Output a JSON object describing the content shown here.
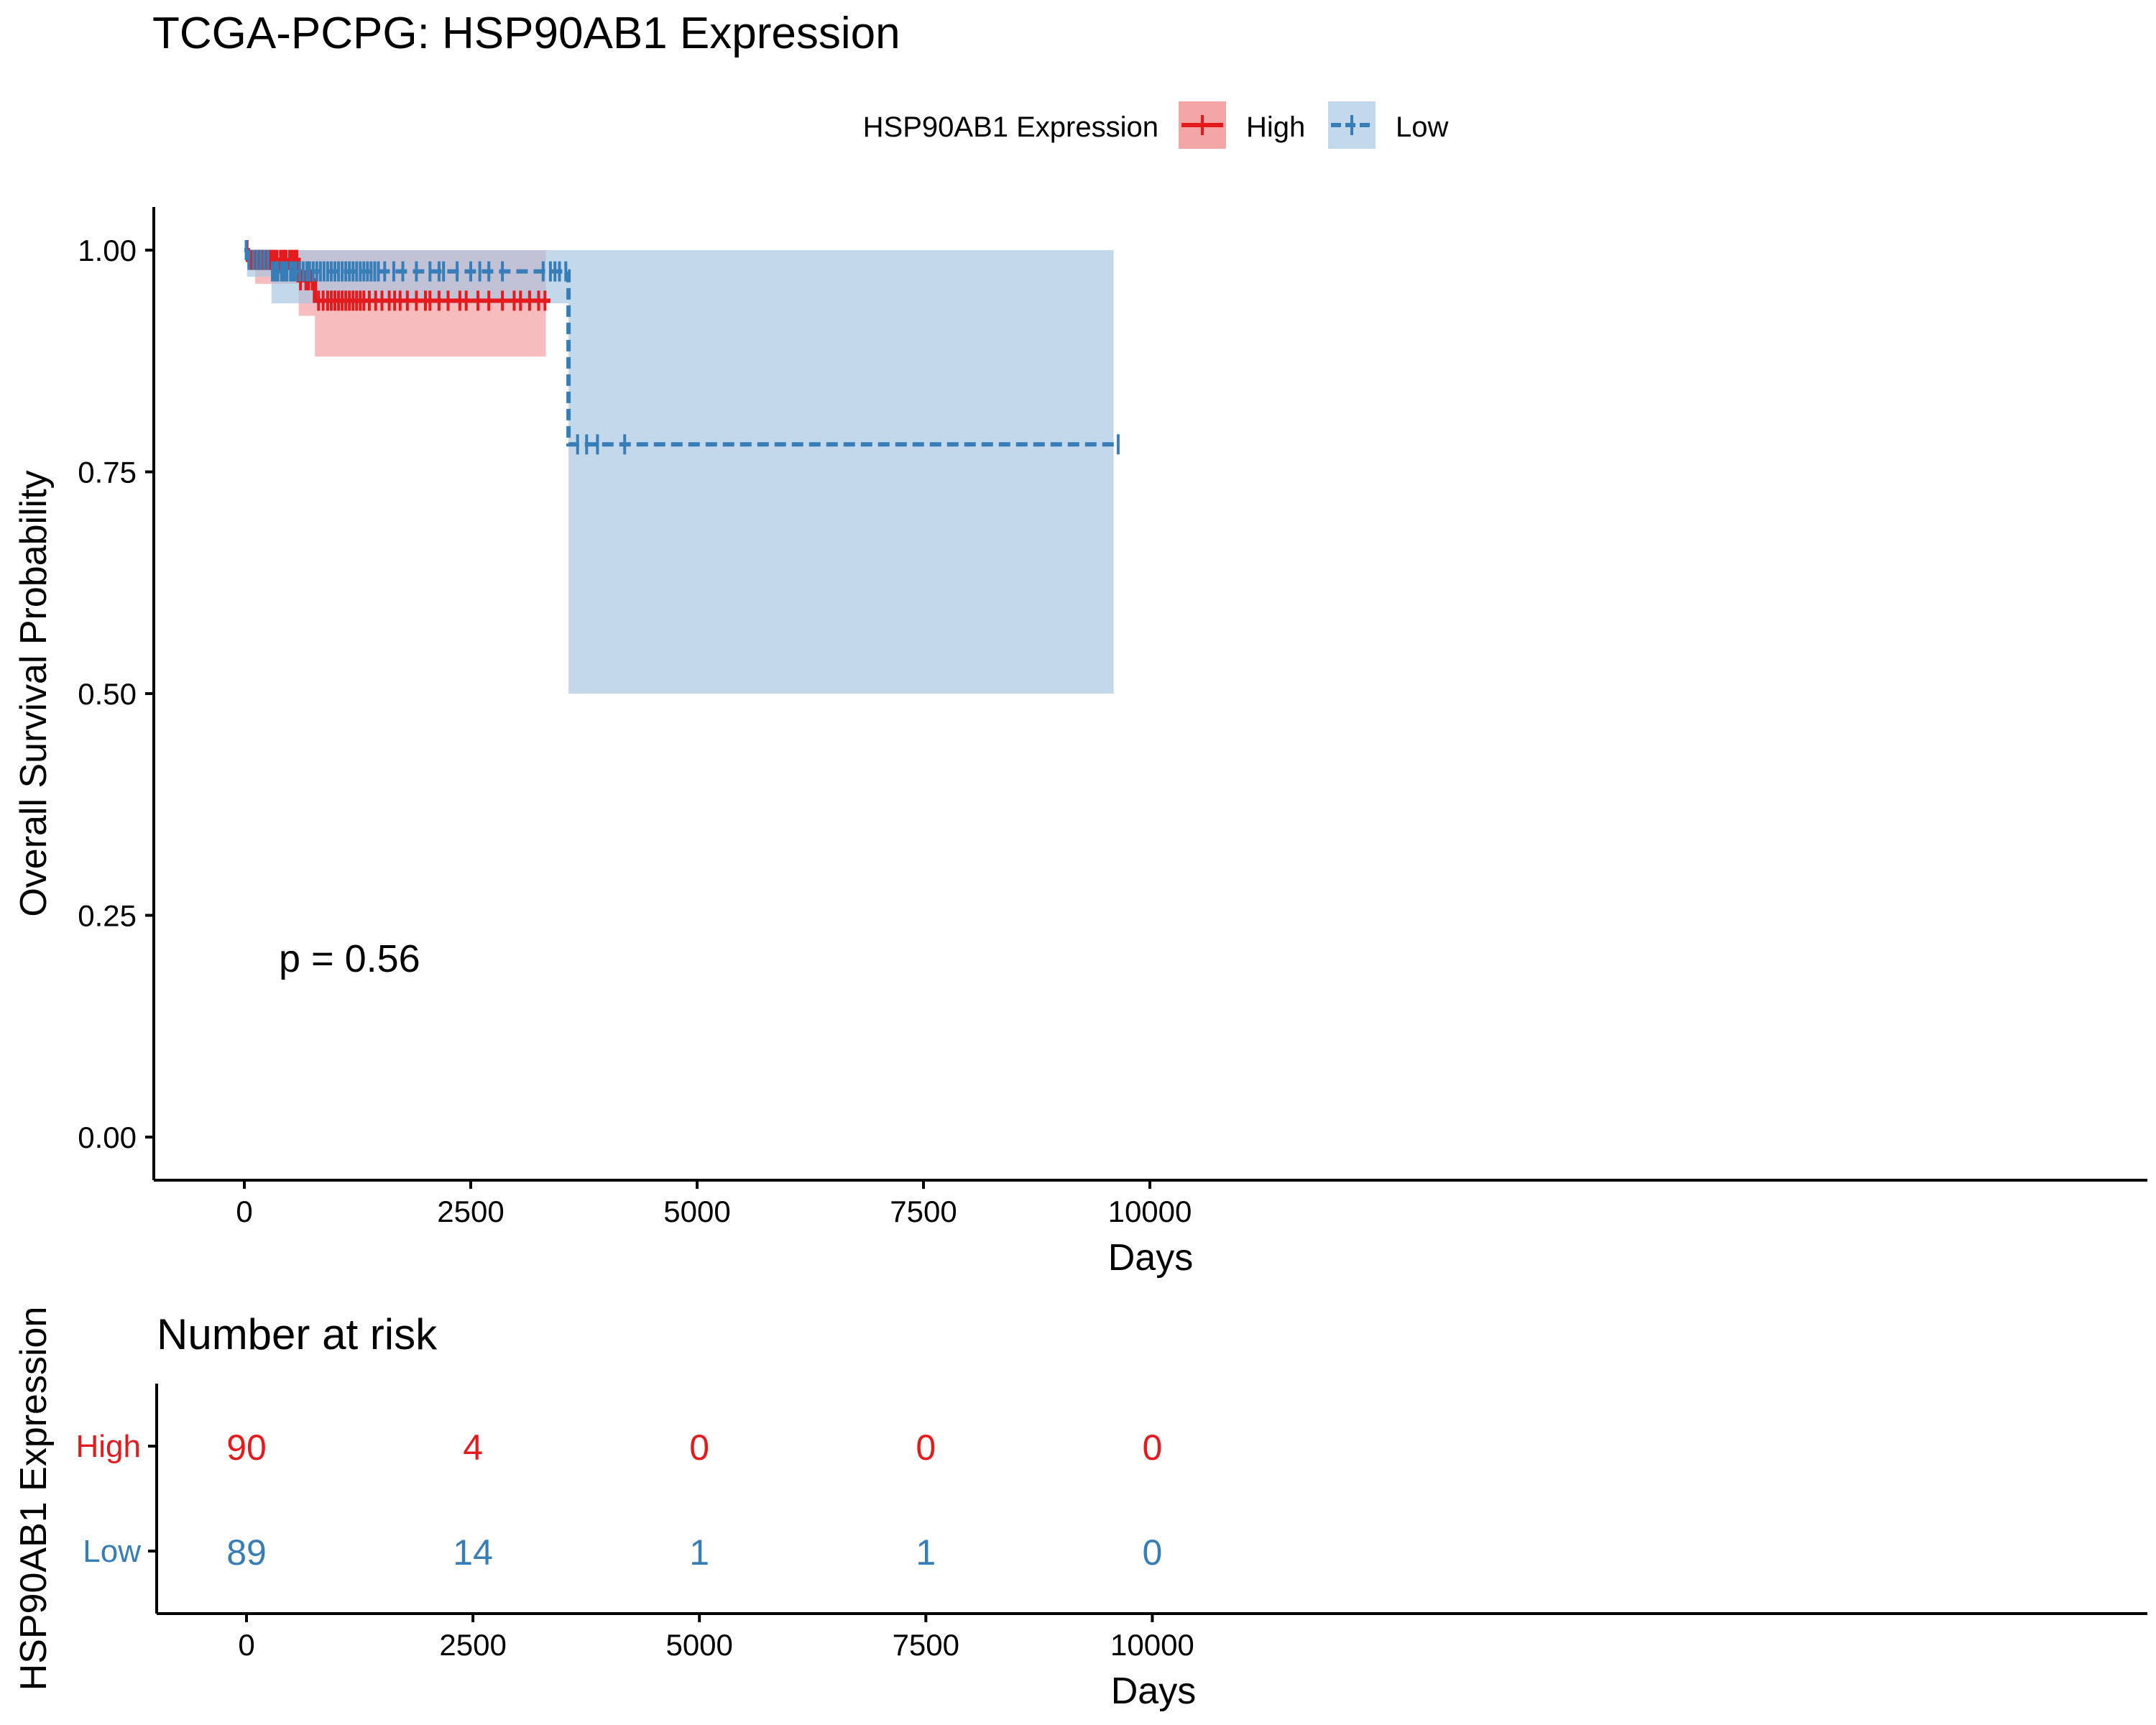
{
  "chart_data": [
    {
      "type": "line",
      "subtype": "kaplan-meier",
      "title": "TCGA-PCPG: HSP90AB1 Expression",
      "xlabel": "Days",
      "ylabel": "Overall Survival Probability",
      "xlim": [
        -500,
        10500
      ],
      "ylim": [
        -0.05,
        1.05
      ],
      "xticks": [
        0,
        2500,
        5000,
        7500,
        10000
      ],
      "xtick_labels": [
        "0",
        "2500",
        "5000",
        "7500",
        "10000"
      ],
      "yticks": [
        0,
        0.25,
        0.5,
        0.75,
        1.0
      ],
      "ytick_labels": [
        "0.00",
        "0.25",
        "0.50",
        "0.75",
        "1.00"
      ],
      "legend": {
        "title": "HSP90AB1 Expression",
        "position": "top"
      },
      "annotation": "p = 0.56",
      "grid": false,
      "series": [
        {
          "name": "High",
          "color": "#E41A1C",
          "fill": "#F4A6A7",
          "linestyle": "solid",
          "steps_x": [
            0,
            40,
            60,
            120,
            380,
            600,
            700,
            780,
            3380
          ],
          "steps_y": [
            1.0,
            0.989,
            0.989,
            0.989,
            0.989,
            0.966,
            0.966,
            0.943,
            0.943
          ],
          "ci_upper": [
            1.0,
            1.0,
            1.0,
            1.0,
            1.0,
            1.0,
            1.0,
            1.0,
            1.0
          ],
          "ci_lower": [
            1.0,
            0.978,
            0.978,
            0.962,
            0.962,
            0.926,
            0.926,
            0.88,
            0.88
          ],
          "ci_end_x": 3330,
          "censor_x": [
            30,
            80,
            130,
            160,
            190,
            210,
            240,
            270,
            300,
            330,
            360,
            400,
            430,
            460,
            500,
            530,
            560,
            580,
            620,
            680,
            710,
            750,
            820,
            870,
            920,
            960,
            1000,
            1040,
            1080,
            1120,
            1160,
            1200,
            1240,
            1280,
            1320,
            1380,
            1450,
            1520,
            1600,
            1660,
            1720,
            1800,
            1900,
            2000,
            2050,
            2150,
            2250,
            2380,
            2450,
            2580,
            2700,
            2850,
            2980,
            3050,
            3150,
            3250,
            3320
          ],
          "censor_y": [
            1.0,
            0.989,
            0.989,
            0.989,
            0.989,
            0.989,
            0.989,
            0.989,
            0.989,
            0.989,
            0.989,
            0.989,
            0.989,
            0.989,
            0.989,
            0.989,
            0.989,
            0.989,
            0.966,
            0.966,
            0.966,
            0.966,
            0.943,
            0.943,
            0.943,
            0.943,
            0.943,
            0.943,
            0.943,
            0.943,
            0.943,
            0.943,
            0.943,
            0.943,
            0.943,
            0.943,
            0.943,
            0.943,
            0.943,
            0.943,
            0.943,
            0.943,
            0.943,
            0.943,
            0.943,
            0.943,
            0.943,
            0.943,
            0.943,
            0.943,
            0.943,
            0.943,
            0.943,
            0.943,
            0.943,
            0.943,
            0.943
          ]
        },
        {
          "name": "Low",
          "color": "#377EB8",
          "fill": "#A6C6E2",
          "linestyle": "dashed",
          "steps_x": [
            0,
            30,
            70,
            300,
            600,
            3580,
            9650
          ],
          "steps_y": [
            1.0,
            0.989,
            0.989,
            0.976,
            0.976,
            0.781,
            0.781
          ],
          "ci_upper": [
            1.0,
            1.0,
            1.0,
            1.0,
            1.0,
            1.0,
            1.0
          ],
          "ci_lower": [
            1.0,
            0.97,
            0.97,
            0.94,
            0.94,
            0.5,
            0.5
          ],
          "ci_end_x": 9600,
          "censor_x": [
            20,
            50,
            100,
            140,
            180,
            220,
            260,
            310,
            340,
            370,
            410,
            440,
            470,
            510,
            540,
            570,
            610,
            650,
            690,
            720,
            760,
            800,
            840,
            880,
            920,
            960,
            1000,
            1040,
            1080,
            1120,
            1160,
            1200,
            1240,
            1280,
            1320,
            1360,
            1400,
            1440,
            1480,
            1550,
            1650,
            1750,
            1900,
            2050,
            2150,
            2200,
            2350,
            2500,
            2600,
            2700,
            2850,
            3300,
            3380,
            3430,
            3480,
            3550,
            3680,
            3780,
            3900,
            4200,
            9650
          ],
          "censor_y": [
            1.0,
            0.989,
            0.989,
            0.989,
            0.989,
            0.989,
            0.989,
            0.976,
            0.976,
            0.976,
            0.976,
            0.976,
            0.976,
            0.976,
            0.976,
            0.976,
            0.976,
            0.976,
            0.976,
            0.976,
            0.976,
            0.976,
            0.976,
            0.976,
            0.976,
            0.976,
            0.976,
            0.976,
            0.976,
            0.976,
            0.976,
            0.976,
            0.976,
            0.976,
            0.976,
            0.976,
            0.976,
            0.976,
            0.976,
            0.976,
            0.976,
            0.976,
            0.976,
            0.976,
            0.976,
            0.976,
            0.976,
            0.976,
            0.976,
            0.976,
            0.976,
            0.976,
            0.976,
            0.976,
            0.976,
            0.976,
            0.781,
            0.781,
            0.781,
            0.781,
            0.781
          ]
        }
      ]
    },
    {
      "type": "table",
      "title": "Number at risk",
      "xlabel": "Days",
      "ylabel": "HSP90AB1 Expression",
      "xlim": [
        -500,
        10500
      ],
      "x": [
        0,
        2500,
        5000,
        7500,
        10000
      ],
      "xtick_labels": [
        "0",
        "2500",
        "5000",
        "7500",
        "10000"
      ],
      "rows": [
        {
          "name": "High",
          "color": "#E41A1C",
          "values": [
            "90",
            "4",
            "0",
            "0",
            "0"
          ]
        },
        {
          "name": "Low",
          "color": "#377EB8",
          "values": [
            "89",
            "14",
            "1",
            "1",
            "0"
          ]
        }
      ]
    }
  ]
}
